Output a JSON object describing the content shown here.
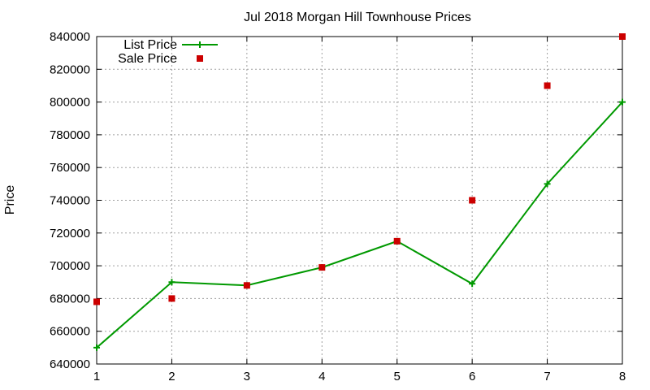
{
  "chart_data": {
    "type": "scatter",
    "title": "Jul 2018 Morgan Hill Townhouse Prices",
    "xlabel": "",
    "ylabel": "Price",
    "xlim": [
      1,
      8
    ],
    "ylim": [
      640000,
      840000
    ],
    "x_ticks": [
      1,
      2,
      3,
      4,
      5,
      6,
      7,
      8
    ],
    "y_ticks": [
      640000,
      660000,
      680000,
      700000,
      720000,
      740000,
      760000,
      780000,
      800000,
      820000,
      840000
    ],
    "grid": true,
    "legend_position": "top-left",
    "series": [
      {
        "name": "List Price",
        "style": "linespoints",
        "marker": "plus",
        "color": "#009900",
        "x": [
          1,
          2,
          3,
          4,
          5,
          6,
          7,
          8
        ],
        "y": [
          650000,
          690000,
          688000,
          699000,
          715000,
          689000,
          750000,
          800000
        ]
      },
      {
        "name": "Sale Price",
        "style": "points",
        "marker": "square",
        "color": "#cc0000",
        "x": [
          1,
          2,
          3,
          4,
          5,
          6,
          7,
          8
        ],
        "y": [
          678000,
          680000,
          688000,
          699000,
          715000,
          740000,
          810000,
          840000
        ]
      }
    ]
  }
}
